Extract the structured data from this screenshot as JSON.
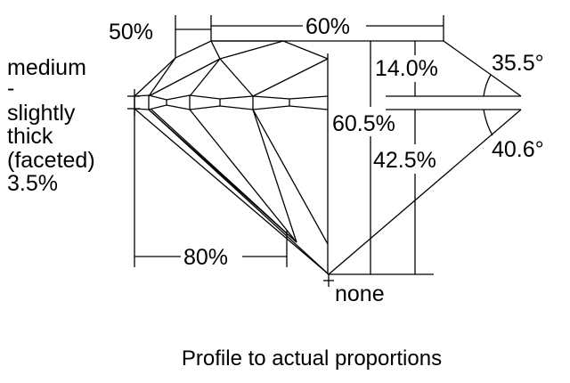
{
  "labels": {
    "table_crown_star": "50%",
    "table_width": "60%",
    "crown_height": "14.0%",
    "crown_angle": "35.5°",
    "total_depth": "60.5%",
    "pavilion_depth": "42.5%",
    "pavilion_angle": "40.6°",
    "lower_half": "80%",
    "culet": "none"
  },
  "girdle": [
    "medium",
    "-",
    "slightly",
    "thick",
    "(faceted)",
    "3.5%"
  ],
  "caption": "Profile to actual proportions"
}
